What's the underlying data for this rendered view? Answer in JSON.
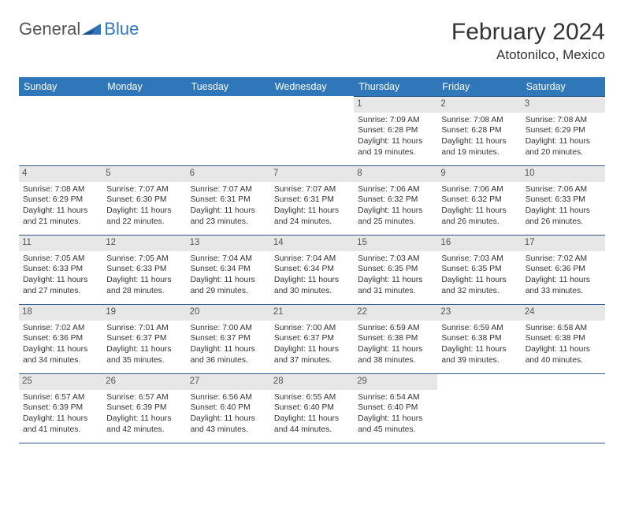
{
  "logo": {
    "part1": "General",
    "part2": "Blue"
  },
  "title": "February 2024",
  "subtitle": "Atotonilco, Mexico",
  "colors": {
    "header_bg": "#2f77b8",
    "header_fg": "#ffffff",
    "rule": "#2f5b86",
    "daynum_bg": "#e7e7e7",
    "logo_accent": "#2f77b8"
  },
  "fontsize": {
    "title": 30,
    "subtitle": 17,
    "dayhead": 12.5,
    "body": 10.3
  },
  "grid": {
    "cols": 7,
    "rows": 5,
    "leading_blanks": 4
  },
  "day_headers": [
    "Sunday",
    "Monday",
    "Tuesday",
    "Wednesday",
    "Thursday",
    "Friday",
    "Saturday"
  ],
  "days": [
    {
      "n": 1,
      "sunrise": "7:09 AM",
      "sunset": "6:28 PM",
      "dl_h": 11,
      "dl_m": 19
    },
    {
      "n": 2,
      "sunrise": "7:08 AM",
      "sunset": "6:28 PM",
      "dl_h": 11,
      "dl_m": 19
    },
    {
      "n": 3,
      "sunrise": "7:08 AM",
      "sunset": "6:29 PM",
      "dl_h": 11,
      "dl_m": 20
    },
    {
      "n": 4,
      "sunrise": "7:08 AM",
      "sunset": "6:29 PM",
      "dl_h": 11,
      "dl_m": 21
    },
    {
      "n": 5,
      "sunrise": "7:07 AM",
      "sunset": "6:30 PM",
      "dl_h": 11,
      "dl_m": 22
    },
    {
      "n": 6,
      "sunrise": "7:07 AM",
      "sunset": "6:31 PM",
      "dl_h": 11,
      "dl_m": 23
    },
    {
      "n": 7,
      "sunrise": "7:07 AM",
      "sunset": "6:31 PM",
      "dl_h": 11,
      "dl_m": 24
    },
    {
      "n": 8,
      "sunrise": "7:06 AM",
      "sunset": "6:32 PM",
      "dl_h": 11,
      "dl_m": 25
    },
    {
      "n": 9,
      "sunrise": "7:06 AM",
      "sunset": "6:32 PM",
      "dl_h": 11,
      "dl_m": 26
    },
    {
      "n": 10,
      "sunrise": "7:06 AM",
      "sunset": "6:33 PM",
      "dl_h": 11,
      "dl_m": 26
    },
    {
      "n": 11,
      "sunrise": "7:05 AM",
      "sunset": "6:33 PM",
      "dl_h": 11,
      "dl_m": 27
    },
    {
      "n": 12,
      "sunrise": "7:05 AM",
      "sunset": "6:33 PM",
      "dl_h": 11,
      "dl_m": 28
    },
    {
      "n": 13,
      "sunrise": "7:04 AM",
      "sunset": "6:34 PM",
      "dl_h": 11,
      "dl_m": 29
    },
    {
      "n": 14,
      "sunrise": "7:04 AM",
      "sunset": "6:34 PM",
      "dl_h": 11,
      "dl_m": 30
    },
    {
      "n": 15,
      "sunrise": "7:03 AM",
      "sunset": "6:35 PM",
      "dl_h": 11,
      "dl_m": 31
    },
    {
      "n": 16,
      "sunrise": "7:03 AM",
      "sunset": "6:35 PM",
      "dl_h": 11,
      "dl_m": 32
    },
    {
      "n": 17,
      "sunrise": "7:02 AM",
      "sunset": "6:36 PM",
      "dl_h": 11,
      "dl_m": 33
    },
    {
      "n": 18,
      "sunrise": "7:02 AM",
      "sunset": "6:36 PM",
      "dl_h": 11,
      "dl_m": 34
    },
    {
      "n": 19,
      "sunrise": "7:01 AM",
      "sunset": "6:37 PM",
      "dl_h": 11,
      "dl_m": 35
    },
    {
      "n": 20,
      "sunrise": "7:00 AM",
      "sunset": "6:37 PM",
      "dl_h": 11,
      "dl_m": 36
    },
    {
      "n": 21,
      "sunrise": "7:00 AM",
      "sunset": "6:37 PM",
      "dl_h": 11,
      "dl_m": 37
    },
    {
      "n": 22,
      "sunrise": "6:59 AM",
      "sunset": "6:38 PM",
      "dl_h": 11,
      "dl_m": 38
    },
    {
      "n": 23,
      "sunrise": "6:59 AM",
      "sunset": "6:38 PM",
      "dl_h": 11,
      "dl_m": 39
    },
    {
      "n": 24,
      "sunrise": "6:58 AM",
      "sunset": "6:38 PM",
      "dl_h": 11,
      "dl_m": 40
    },
    {
      "n": 25,
      "sunrise": "6:57 AM",
      "sunset": "6:39 PM",
      "dl_h": 11,
      "dl_m": 41
    },
    {
      "n": 26,
      "sunrise": "6:57 AM",
      "sunset": "6:39 PM",
      "dl_h": 11,
      "dl_m": 42
    },
    {
      "n": 27,
      "sunrise": "6:56 AM",
      "sunset": "6:40 PM",
      "dl_h": 11,
      "dl_m": 43
    },
    {
      "n": 28,
      "sunrise": "6:55 AM",
      "sunset": "6:40 PM",
      "dl_h": 11,
      "dl_m": 44
    },
    {
      "n": 29,
      "sunrise": "6:54 AM",
      "sunset": "6:40 PM",
      "dl_h": 11,
      "dl_m": 45
    }
  ],
  "labels": {
    "sunrise": "Sunrise:",
    "sunset": "Sunset:",
    "daylight_prefix": "Daylight:",
    "hours_word": "hours",
    "and_word": "and",
    "minutes_word": "minutes."
  }
}
